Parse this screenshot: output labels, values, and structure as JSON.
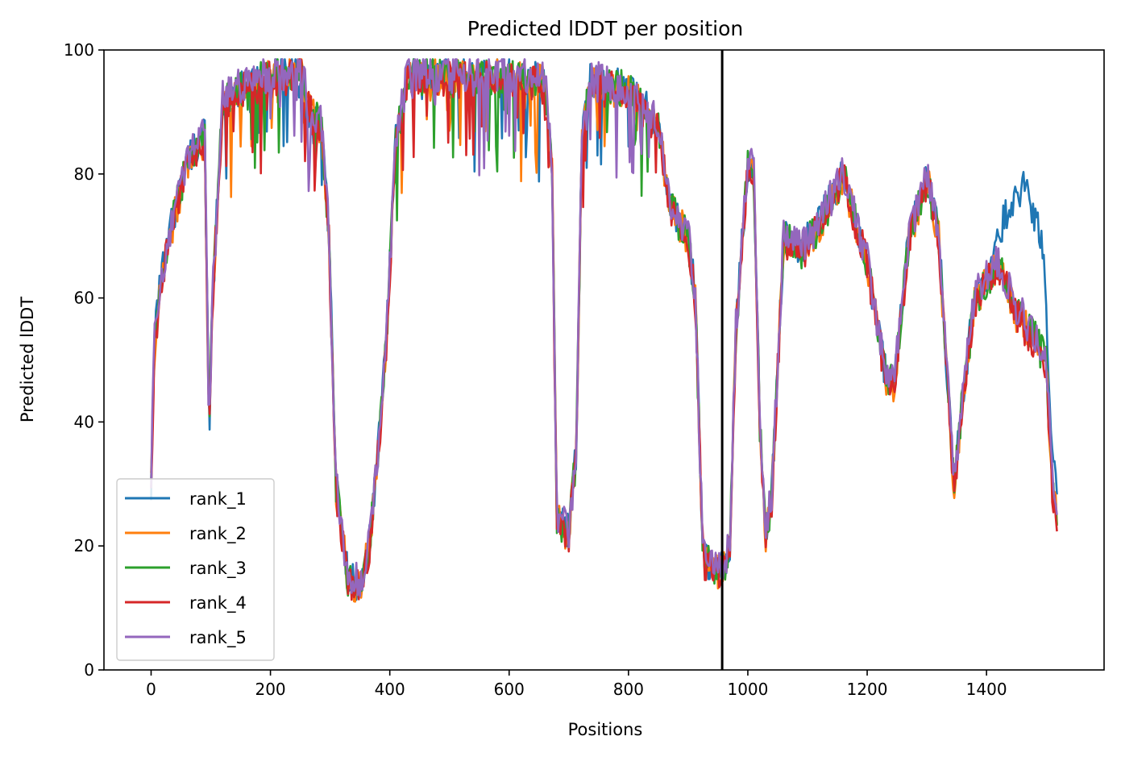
{
  "chart_data": {
    "type": "line",
    "title": "Predicted lDDT per position",
    "xlabel": "Positions",
    "ylabel": "Predicted lDDT",
    "xlim": [
      -79,
      1597
    ],
    "ylim": [
      0,
      100
    ],
    "xticks": [
      0,
      200,
      400,
      600,
      800,
      1000,
      1200,
      1400
    ],
    "yticks": [
      0,
      20,
      40,
      60,
      80,
      100
    ],
    "grid": false,
    "legend": "lower-left",
    "vline": 957,
    "vline_color": "#000000",
    "series": [
      {
        "name": "rank_1",
        "color": "#1f77b4",
        "offset": 0.0
      },
      {
        "name": "rank_2",
        "color": "#ff7f0e",
        "offset": -0.5
      },
      {
        "name": "rank_3",
        "color": "#2ca02c",
        "offset": -0.3
      },
      {
        "name": "rank_4",
        "color": "#d62728",
        "offset": -0.8
      },
      {
        "name": "rank_5",
        "color": "#9467bd",
        "offset": 0.3
      }
    ],
    "profile_x": [
      0,
      5,
      15,
      30,
      50,
      60,
      70,
      90,
      97,
      103,
      120,
      150,
      200,
      250,
      270,
      285,
      298,
      310,
      330,
      350,
      365,
      380,
      395,
      410,
      430,
      500,
      600,
      660,
      672,
      680,
      700,
      712,
      722,
      735,
      800,
      850,
      870,
      900,
      912,
      925,
      957,
      970,
      980,
      1000,
      1010,
      1020,
      1030,
      1040,
      1060,
      1090,
      1120,
      1160,
      1200,
      1230,
      1245,
      1270,
      1300,
      1320,
      1345,
      1360,
      1380,
      1420,
      1450,
      1480,
      1500,
      1510,
      1519
    ],
    "profile_y": [
      30,
      52,
      62,
      70,
      78,
      82,
      84,
      86,
      38,
      60,
      92,
      94,
      96,
      97,
      90,
      88,
      70,
      30,
      15,
      14,
      20,
      35,
      55,
      85,
      96,
      96,
      96,
      95,
      80,
      25,
      22,
      35,
      85,
      95,
      94,
      88,
      75,
      70,
      60,
      18,
      16,
      20,
      55,
      82,
      80,
      40,
      22,
      28,
      70,
      68,
      72,
      80,
      66,
      48,
      46,
      70,
      80,
      70,
      30,
      44,
      60,
      66,
      58,
      54,
      50,
      30,
      24
    ],
    "rank_1_extra_x": [
      1395,
      1415,
      1440,
      1465,
      1490,
      1505
    ],
    "rank_1_extra_y": [
      0,
      2,
      14,
      22,
      18,
      6
    ],
    "positions_max": 1519
  }
}
